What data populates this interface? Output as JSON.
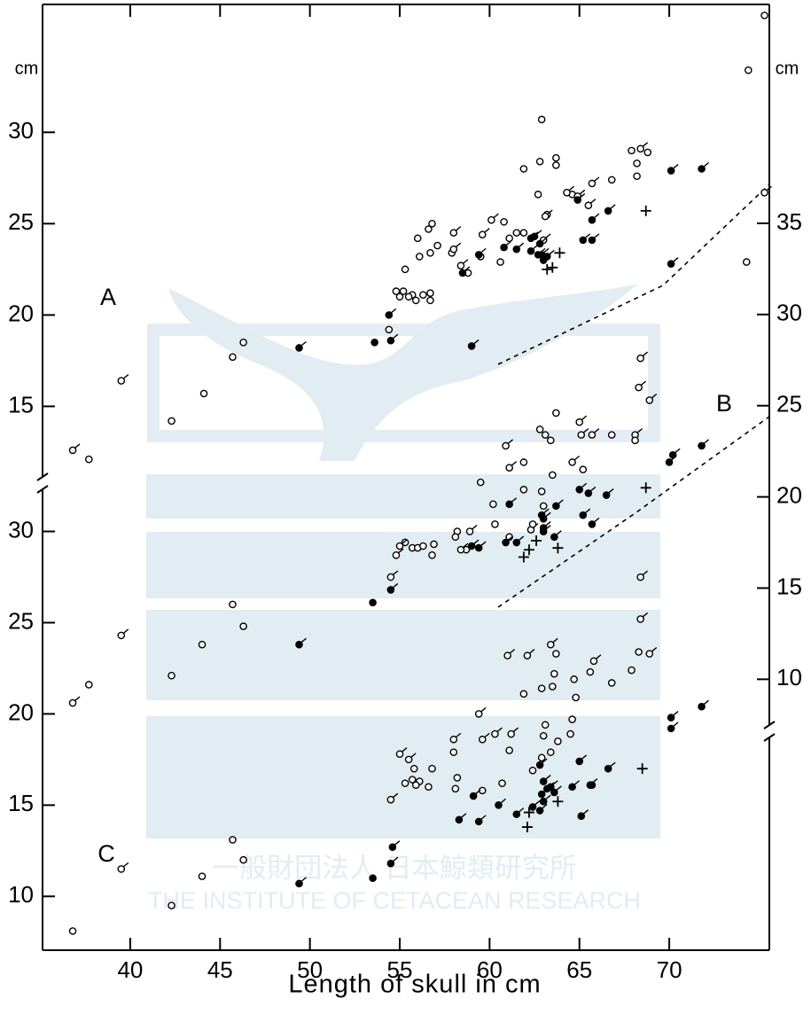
{
  "chart_data": {
    "type": "scatter",
    "xlabel": "Length of skull in cm",
    "xlim": [
      35.12,
      75.57
    ],
    "xticks": [
      40,
      45,
      50,
      55,
      60,
      65,
      70
    ],
    "watermark": [
      "一般財団法人 日本鯨類研究所",
      "THE INSTITUTE OF CETACEAN RESEARCH"
    ],
    "panels": [
      {
        "label": "A",
        "axis": "left",
        "unit": "cm",
        "ylim": [
          10.8,
          37.0
        ],
        "yticks": [
          15,
          20,
          25,
          30
        ],
        "series": [
          {
            "marker": "open",
            "x": [
              75.3,
              74.4,
              62.9,
              61.9,
              62.8,
              63.7,
              63.7,
              67.9,
              68.8,
              68.2,
              68.2,
              66.8,
              62.7,
              64.6,
              63.2,
              60.8,
              61.5,
              61.9,
              61.1,
              60.6,
              57.9,
              58.8,
              59.5,
              74.3,
              57.1,
              56.7,
              56.8,
              56.6,
              56.0,
              56.1,
              55.3,
              55.2,
              54.8,
              55.7,
              55.9,
              55.5,
              56.3,
              56.7,
              55.0,
              54.4,
              56.7,
              45.7,
              46.3,
              42.3,
              44.1,
              37.7
            ],
            "y": [
              36.4,
              33.4,
              30.7,
              28.0,
              28.4,
              28.6,
              28.2,
              29.0,
              28.9,
              28.3,
              27.6,
              27.4,
              26.6,
              26.6,
              25.5,
              25.1,
              24.5,
              24.5,
              24.2,
              22.9,
              23.4,
              22.3,
              23.2,
              22.9,
              23.8,
              23.4,
              25.0,
              24.7,
              24.2,
              23.2,
              22.5,
              21.3,
              21.3,
              21.1,
              20.8,
              21.0,
              21.1,
              21.2,
              21.0,
              19.2,
              20.8,
              17.7,
              18.5,
              14.2,
              15.7,
              12.1
            ]
          },
          {
            "marker": "open-tailed",
            "x": [
              68.4,
              64.3,
              65.7,
              64.9,
              65.5,
              63.1,
              60.1,
              59.6,
              58.0,
              58.0,
              58.4,
              63.0,
              75.3,
              39.5,
              36.8
            ],
            "y": [
              29.1,
              26.7,
              27.2,
              26.5,
              26.0,
              25.4,
              25.2,
              24.4,
              24.5,
              23.6,
              22.7,
              24.1,
              26.7,
              16.4,
              12.6
            ]
          },
          {
            "marker": "filled-tailed",
            "x": [
              70.1,
              71.8,
              64.9,
              65.7,
              66.6,
              59.4,
              58.5,
              60.8,
              61.5,
              62.3,
              62.7,
              62.9,
              63.0,
              63.2,
              62.3,
              62.5,
              62.8,
              65.2,
              65.7,
              70.1,
              54.4,
              54.5,
              49.4,
              59.0
            ],
            "y": [
              27.9,
              28.0,
              26.3,
              25.2,
              25.7,
              23.3,
              22.3,
              23.7,
              23.6,
              23.5,
              23.3,
              23.3,
              23.0,
              23.2,
              24.2,
              24.3,
              23.9,
              24.1,
              24.1,
              22.8,
              20.0,
              18.6,
              18.2,
              18.3
            ]
          },
          {
            "marker": "filled",
            "x": [
              53.6
            ],
            "y": [
              18.5
            ]
          },
          {
            "marker": "plus",
            "x": [
              63.9,
              63.5,
              63.2,
              68.7
            ],
            "y": [
              23.4,
              22.6,
              22.5,
              25.7
            ]
          }
        ]
      },
      {
        "label": "B",
        "axis": "right",
        "unit": "cm",
        "ylim": [
          7.15,
          47.0
        ],
        "yticks": [
          10,
          15,
          20,
          25,
          30,
          35
        ],
        "series": [
          {
            "marker": "open-tailed",
            "x": [
              68.4,
              68.3,
              68.9,
              65.0,
              65.1,
              65.7,
              68.1,
              60.9,
              61.1,
              64.6,
              62.3,
              68.4,
              68.4,
              68.9,
              65.8,
              63.4,
              62.1,
              61.0
            ],
            "y": [
              27.6,
              26.0,
              25.3,
              24.1,
              23.4,
              23.4,
              23.4,
              22.8,
              21.6,
              21.9,
              18.2,
              15.6,
              13.3,
              11.4,
              11.0,
              11.9,
              11.3,
              11.3
            ]
          },
          {
            "marker": "open",
            "x": [
              66.8,
              68.1,
              63.7,
              62.8,
              63.1,
              63.4,
              61.9,
              65.2,
              63.5,
              62.9,
              61.9,
              59.5,
              60.2,
              63.0,
              62.4,
              61.1,
              60.3,
              68.3,
              67.9,
              66.8,
              65.6,
              64.8,
              64.7,
              63.6,
              63.5,
              63.7,
              61.9,
              62.9
            ],
            "y": [
              23.4,
              23.1,
              24.6,
              23.7,
              23.4,
              23.1,
              21.9,
              21.5,
              21.2,
              20.3,
              20.4,
              20.8,
              19.6,
              19.5,
              18.5,
              17.8,
              18.5,
              11.5,
              10.5,
              9.8,
              10.4,
              9.0,
              10.0,
              10.3,
              9.6,
              11.4,
              9.2,
              9.5
            ]
          },
          {
            "marker": "filled-tailed",
            "x": [
              70.2,
              70.0,
              71.8,
              65.0,
              65.5,
              66.5,
              61.1,
              62.9,
              63.0,
              63.0,
              63.0,
              60.9,
              61.5,
              63.6,
              63.7,
              65.2,
              65.7
            ],
            "y": [
              22.3,
              21.9,
              22.8,
              20.4,
              20.2,
              20.1,
              19.6,
              19.0,
              18.8,
              18.3,
              18.1,
              17.5,
              17.5,
              17.8,
              19.5,
              19.0,
              18.5
            ]
          },
          {
            "marker": "plus",
            "x": [
              68.7,
              61.9,
              62.2,
              62.6,
              63.8
            ],
            "y": [
              20.5,
              16.7,
              17.1,
              17.6,
              17.2
            ]
          }
        ]
      },
      {
        "label": "C",
        "axis": "left",
        "ylim": [
          7.05,
          32.65
        ],
        "yticks": [
          10,
          15,
          20,
          25,
          30
        ],
        "series": [
          {
            "marker": "open",
            "x": [
              36.8,
              42.3,
              44.0,
              45.7,
              46.3,
              37.7,
              42.3,
              44.0,
              45.7,
              46.3,
              55.3,
              55.7,
              56.0,
              56.3,
              56.8,
              56.9,
              58.2,
              58.1,
              58.7,
              61.1,
              62.4,
              62.9,
              63.0,
              63.8,
              63.4,
              63.1,
              64.6,
              64.5,
              58.0,
              55.8,
              56.1,
              56.8,
              56.6,
              55.7,
              55.9,
              55.3,
              58.1,
              58.2,
              60.7,
              59.6
            ],
            "y": [
              8.1,
              9.5,
              11.1,
              13.1,
              12.0,
              21.6,
              22.1,
              23.8,
              26.0,
              24.8,
              29.4,
              29.1,
              29.1,
              29.2,
              28.7,
              29.3,
              30.0,
              29.7,
              29.0,
              18.0,
              16.9,
              17.6,
              18.8,
              18.5,
              17.9,
              19.4,
              19.7,
              18.9,
              17.9,
              17.0,
              16.3,
              17.0,
              16.0,
              16.4,
              16.1,
              16.2,
              15.9,
              16.5,
              16.2,
              15.8
            ]
          },
          {
            "marker": "open-tailed",
            "x": [
              39.5,
              36.8,
              39.5,
              54.5,
              54.8,
              55.0,
              58.4,
              58.9,
              59.4,
              59.6,
              60.3,
              61.2,
              58.0,
              55.0,
              55.5,
              54.5
            ],
            "y": [
              11.5,
              20.6,
              24.3,
              27.5,
              28.7,
              29.2,
              29.0,
              30.0,
              20.0,
              18.6,
              18.9,
              18.9,
              18.6,
              17.8,
              17.5,
              15.3
            ]
          },
          {
            "marker": "filled-tailed",
            "x": [
              49.4,
              54.5,
              54.6,
              49.4,
              54.5,
              59.0,
              59.4,
              70.1,
              70.1,
              71.8,
              66.6,
              65.0,
              62.8,
              59.1,
              60.5,
              61.5,
              62.4,
              62.9,
              63.0,
              63.2,
              63.4,
              63.6,
              63.0,
              62.8,
              64.6,
              65.6,
              65.1,
              58.3,
              59.4
            ],
            "y": [
              10.7,
              11.8,
              12.7,
              23.8,
              26.8,
              29.2,
              29.1,
              19.2,
              19.8,
              20.4,
              17.0,
              17.4,
              17.2,
              15.5,
              15.0,
              14.5,
              14.9,
              15.6,
              16.3,
              15.9,
              16.0,
              15.7,
              15.2,
              14.7,
              16.0,
              16.1,
              14.4,
              14.2,
              14.1
            ]
          },
          {
            "marker": "filled",
            "x": [
              53.5,
              53.5,
              65.7
            ],
            "y": [
              11.0,
              26.1,
              16.1
            ]
          },
          {
            "marker": "plus",
            "x": [
              68.5,
              63.8,
              62.2,
              62.1
            ],
            "y": [
              17.0,
              15.2,
              14.6,
              13.8
            ]
          }
        ]
      }
    ]
  }
}
